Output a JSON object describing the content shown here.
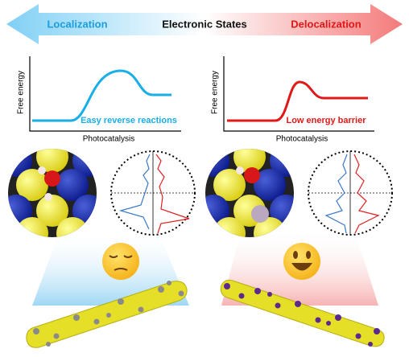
{
  "header": {
    "left": "Localization",
    "center": "Electronic States",
    "right": "Delocalization"
  },
  "panels": [
    {
      "y_label": "Free energy",
      "x_label": "Photocatalysis",
      "note": "Easy reverse reactions"
    },
    {
      "y_label": "Free energy",
      "x_label": "Photocatalysis",
      "note": "Low energy barrier"
    }
  ]
}
